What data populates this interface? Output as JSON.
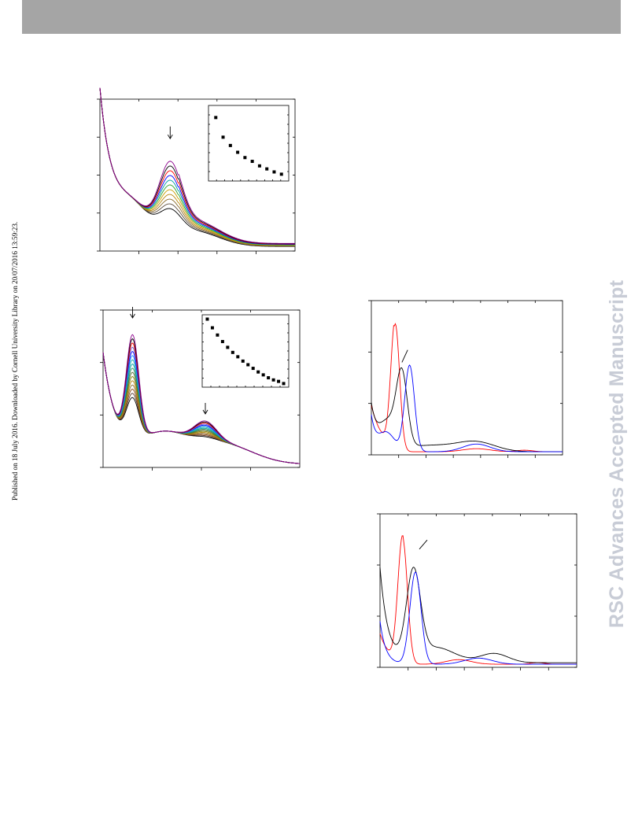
{
  "header": {
    "text": ""
  },
  "side_note": "Published on 18 July 2016. Downloaded by Cornell University Library on 20/07/2016 13:59:23.",
  "watermark": "RSC Advances Accepted Manuscript",
  "chart_data": [
    {
      "id": "panel-a",
      "type": "line",
      "xlim": [
        0,
        100
      ],
      "ylim": [
        0,
        1
      ],
      "series_colors": [
        "#000000",
        "#5a4a3a",
        "#8b6c2a",
        "#b8860b",
        "#c8a000",
        "#2ca02c",
        "#00a0a0",
        "#0000ff",
        "#ff0000",
        "#000000",
        "#8b008b"
      ],
      "arrows": [
        {
          "x": 36,
          "y": [
            0.82,
            0.74
          ]
        }
      ],
      "inset": {
        "type": "scatter",
        "x": [
          1,
          2,
          3,
          4,
          5,
          6,
          7,
          8,
          9,
          10
        ],
        "y": [
          0.84,
          0.58,
          0.47,
          0.38,
          0.31,
          0.26,
          0.2,
          0.16,
          0.12,
          0.09
        ],
        "xlim": [
          0,
          11
        ],
        "ylim": [
          0,
          1
        ]
      }
    },
    {
      "id": "panel-b",
      "type": "line",
      "xlim": [
        0,
        100
      ],
      "ylim": [
        0,
        1
      ],
      "series_colors": [
        "#000000",
        "#5a3a2a",
        "#8b4513",
        "#8b6c2a",
        "#b8860b",
        "#808000",
        "#556b2f",
        "#2e8b57",
        "#00a0a0",
        "#20b2aa",
        "#1e90ff",
        "#0000ff",
        "#6a5acd",
        "#ff0000",
        "#000000",
        "#8b008b"
      ],
      "arrows": [
        {
          "x": 15,
          "y": [
            1.02,
            0.95
          ]
        },
        {
          "x": 52,
          "y": [
            0.41,
            0.34
          ]
        }
      ],
      "inset": {
        "type": "scatter",
        "x": [
          1,
          2,
          3,
          4,
          5,
          6,
          7,
          8,
          9,
          10,
          11,
          12,
          13,
          14,
          15,
          16
        ],
        "y": [
          0.94,
          0.82,
          0.72,
          0.63,
          0.55,
          0.48,
          0.42,
          0.36,
          0.31,
          0.26,
          0.21,
          0.17,
          0.13,
          0.1,
          0.08,
          0.05
        ],
        "xlim": [
          0,
          17
        ],
        "ylim": [
          0,
          1
        ]
      }
    },
    {
      "id": "panel-c",
      "type": "line",
      "xlim": [
        0,
        100
      ],
      "ylim": [
        0,
        1
      ],
      "series_colors": [
        "#ff0000",
        "#000000",
        "#0000ff"
      ],
      "pointer": {
        "x": [
          16,
          19
        ],
        "y": [
          0.6,
          0.68
        ]
      }
    },
    {
      "id": "panel-d",
      "type": "line",
      "xlim": [
        0,
        100
      ],
      "ylim": [
        0,
        1
      ],
      "series_colors": [
        "#ff0000",
        "#000000",
        "#0000ff"
      ],
      "pointer": {
        "x": [
          20,
          24
        ],
        "y": [
          0.77,
          0.83
        ]
      }
    }
  ]
}
